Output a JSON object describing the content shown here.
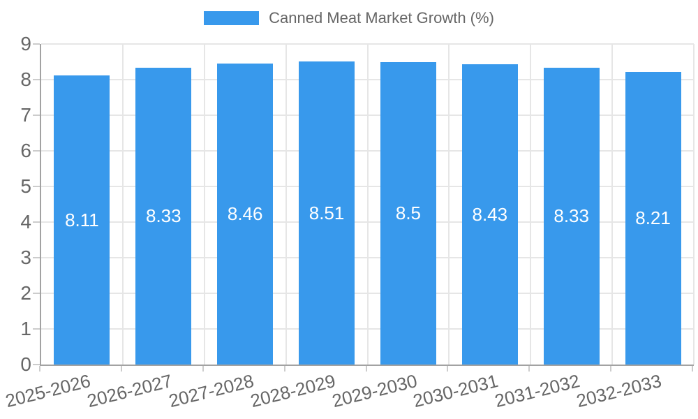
{
  "legend": {
    "label": "Canned Meat Market Growth (%)"
  },
  "colors": {
    "bar": "#3899EC",
    "grid": "#E6E6E6",
    "axis": "#A2A2A2",
    "tick_mark": "#CCCCCC",
    "tick_text": "#666666",
    "value_label": "#FFFFFF"
  },
  "chart_data": {
    "type": "bar",
    "title": "Canned Meat Market Growth (%)",
    "categories": [
      "2025-2026",
      "2026-2027",
      "2027-2028",
      "2028-2029",
      "2029-2030",
      "2030-2031",
      "2031-2032",
      "2032-2033"
    ],
    "values": [
      8.11,
      8.33,
      8.46,
      8.51,
      8.5,
      8.43,
      8.33,
      8.21
    ],
    "bar_labels": [
      "8.11",
      "8.33",
      "8.46",
      "8.51",
      "8.5",
      "8.43",
      "8.33",
      "8.21"
    ],
    "xlabel": "",
    "ylabel": "",
    "ylim": [
      0,
      9
    ],
    "yticks": [
      0,
      1,
      2,
      3,
      4,
      5,
      6,
      7,
      8,
      9
    ],
    "grid": true,
    "legend_position": "top-center"
  }
}
